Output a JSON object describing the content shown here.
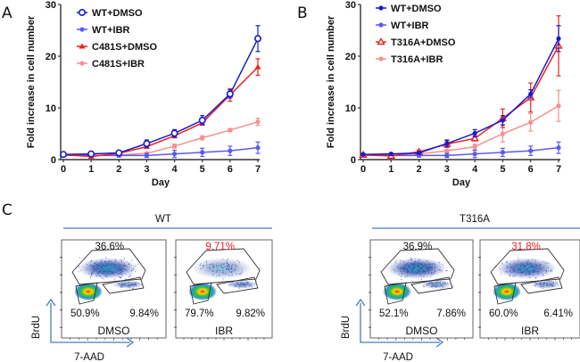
{
  "panels": {
    "a": "A",
    "b": "B",
    "c": "C"
  },
  "chart_data": [
    {
      "id": "A",
      "type": "line",
      "title": "",
      "xlabel": "Day",
      "ylabel": "Fold increase in cell number",
      "x": [
        0,
        1,
        2,
        3,
        4,
        5,
        6,
        7
      ],
      "xticks": [
        "0",
        "1",
        "2",
        "3",
        "4",
        "5",
        "6",
        "7"
      ],
      "yticks": [
        "0",
        "10",
        "20",
        "30"
      ],
      "ytick_values": [
        0,
        10,
        20,
        30
      ],
      "ylim": [
        0,
        30
      ],
      "xlim": [
        0,
        7
      ],
      "legend_position": "top-left",
      "series": [
        {
          "name": "WT+DMSO",
          "color": "#1a1acc",
          "marker": "circle-open",
          "values": [
            1.0,
            1.1,
            1.3,
            3.1,
            5.1,
            7.6,
            12.7,
            23.4
          ],
          "errors": [
            0.2,
            0.2,
            0.2,
            0.7,
            0.7,
            0.9,
            0.8,
            2.5
          ]
        },
        {
          "name": "WT+IBR",
          "color": "#5a5af5",
          "marker": "dot",
          "values": [
            0.9,
            0.8,
            0.8,
            0.8,
            1.1,
            1.4,
            1.7,
            2.3
          ],
          "errors": [
            0.2,
            0.2,
            0.3,
            0.4,
            0.7,
            0.8,
            0.9,
            1.1
          ]
        },
        {
          "name": "C481S+DMSO",
          "color": "#ee2222",
          "marker": "triangle",
          "values": [
            0.9,
            0.6,
            1.2,
            2.5,
            4.6,
            7.1,
            12.5,
            17.9
          ],
          "errors": [
            0.2,
            0.2,
            0.2,
            0.3,
            0.4,
            0.4,
            1.2,
            1.6
          ]
        },
        {
          "name": "C481S+IBR",
          "color": "#f59090",
          "marker": "dot",
          "values": [
            0.9,
            0.8,
            0.9,
            1.2,
            2.6,
            4.2,
            5.7,
            7.3
          ],
          "errors": [
            0.1,
            0.1,
            0.2,
            0.2,
            0.4,
            0.4,
            0.3,
            0.7
          ]
        }
      ]
    },
    {
      "id": "B",
      "type": "line",
      "title": "",
      "xlabel": "Day",
      "ylabel": "Fold increase in cell number",
      "x": [
        0,
        1,
        2,
        3,
        4,
        5,
        6,
        7
      ],
      "xticks": [
        "0",
        "1",
        "2",
        "3",
        "4",
        "5",
        "6",
        "7"
      ],
      "yticks": [
        "0",
        "10",
        "20",
        "30"
      ],
      "ytick_values": [
        0,
        10,
        20,
        30
      ],
      "ylim": [
        0,
        30
      ],
      "xlim": [
        0,
        7
      ],
      "legend_position": "top-left",
      "series": [
        {
          "name": "WT+DMSO",
          "color": "#1a1acc",
          "marker": "dot",
          "values": [
            1.0,
            1.1,
            1.3,
            3.1,
            5.1,
            7.6,
            12.7,
            23.4
          ],
          "errors": [
            0.2,
            0.2,
            0.2,
            0.7,
            0.7,
            0.9,
            0.8,
            2.5
          ]
        },
        {
          "name": "WT+IBR",
          "color": "#5a5af5",
          "marker": "dot",
          "values": [
            0.9,
            0.8,
            0.8,
            0.8,
            1.1,
            1.4,
            1.7,
            2.3
          ],
          "errors": [
            0.2,
            0.2,
            0.3,
            0.4,
            0.7,
            0.8,
            0.9,
            1.1
          ]
        },
        {
          "name": "T316A+DMSO",
          "color": "#ee2222",
          "marker": "triangle-open",
          "values": [
            0.9,
            0.7,
            1.5,
            3.0,
            4.1,
            8.0,
            12.0,
            22.0
          ],
          "errors": [
            0.2,
            0.2,
            0.3,
            0.6,
            0.5,
            1.8,
            2.8,
            5.8
          ]
        },
        {
          "name": "T316A+IBR",
          "color": "#f59090",
          "marker": "dot",
          "values": [
            0.9,
            0.8,
            1.1,
            1.7,
            2.5,
            5.0,
            7.2,
            10.4
          ],
          "errors": [
            0.1,
            0.1,
            0.2,
            0.3,
            0.5,
            1.6,
            1.7,
            3.0
          ]
        }
      ]
    }
  ],
  "flow": {
    "x_axis_label": "7-AAD",
    "y_axis_label": "BrdU",
    "groups": [
      {
        "name": "WT",
        "conditions": [
          {
            "label": "DMSO",
            "s_phase": "36.6%",
            "g1": "50.9%",
            "g2m": "9.84%",
            "highlight": false
          },
          {
            "label": "IBR",
            "s_phase": "9.71%",
            "g1": "79.7%",
            "g2m": "9.82%",
            "highlight": true
          }
        ]
      },
      {
        "name": "T316A",
        "conditions": [
          {
            "label": "DMSO",
            "s_phase": "36.9%",
            "g1": "52.1%",
            "g2m": "7.86%",
            "highlight": false
          },
          {
            "label": "IBR",
            "s_phase": "31.8%",
            "g1": "60.0%",
            "g2m": "6.41%",
            "highlight": true
          }
        ]
      }
    ]
  }
}
